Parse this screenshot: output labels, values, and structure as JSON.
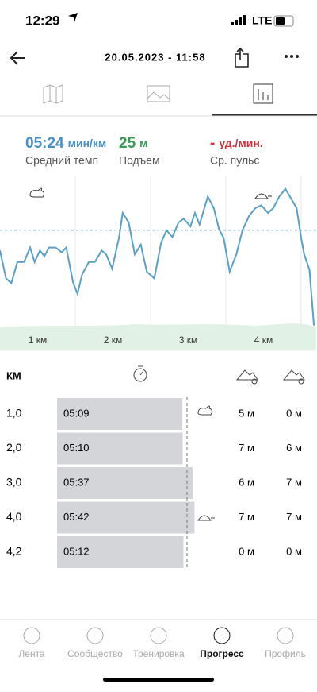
{
  "status_bar": {
    "time": "12:29",
    "network": "LTE"
  },
  "header": {
    "title": "20.05.2023 - 11:58"
  },
  "stats": [
    {
      "value": "05:24",
      "unit": "мин/км",
      "label": "Средний темп"
    },
    {
      "value": "25",
      "unit": "м",
      "label": "Подъем"
    },
    {
      "value": "-",
      "unit": "уд./мин.",
      "label": "Ср. пульс"
    }
  ],
  "pace_chart": {
    "type": "line",
    "color": "#5b9fc4",
    "x": [
      0,
      0.08,
      0.15,
      0.23,
      0.32,
      0.4,
      0.46,
      0.53,
      0.59,
      0.65,
      0.74,
      0.82,
      0.88,
      0.97,
      1.03,
      1.09,
      1.18,
      1.26,
      1.35,
      1.41,
      1.49,
      1.58,
      1.63,
      1.71,
      1.79,
      1.87,
      1.95,
      2.05,
      2.14,
      2.21,
      2.29,
      2.37,
      2.44,
      2.53,
      2.59,
      2.65,
      2.76,
      2.84,
      2.91,
      2.97,
      3.05,
      3.14,
      3.22,
      3.31,
      3.39,
      3.47,
      3.56,
      3.63,
      3.71,
      3.79,
      3.85,
      3.94,
      4.0,
      4.04,
      4.11,
      4.17
    ],
    "values": [
      303,
      274,
      269,
      291,
      291,
      306,
      291,
      303,
      297,
      306,
      306,
      301,
      306,
      270,
      258,
      278,
      291,
      291,
      303,
      299,
      284,
      316,
      342,
      332,
      299,
      309,
      281,
      274,
      311,
      324,
      317,
      332,
      336,
      328,
      342,
      330,
      359,
      347,
      325,
      316,
      281,
      299,
      324,
      339,
      347,
      350,
      342,
      347,
      359,
      367,
      359,
      347,
      316,
      299,
      283,
      225
    ],
    "xlim": [
      0,
      4.2
    ],
    "ylim": [
      200,
      380
    ],
    "xticks": [
      {
        "value": 0.5,
        "label": "1 км"
      },
      {
        "value": 1.5,
        "label": "2 км"
      },
      {
        "value": 2.5,
        "label": "3 км"
      },
      {
        "value": 3.5,
        "label": "4 км"
      }
    ]
  },
  "table": {
    "header": "КМ",
    "rows": [
      [
        "1,0",
        "05:09",
        "5 м",
        "0 м"
      ],
      [
        "2,0",
        "05:10",
        "7 м",
        "6 м"
      ],
      [
        "3,0",
        "05:37",
        "6 м",
        "7 м"
      ],
      [
        "4,0",
        "05:42",
        "7 м",
        "7 м"
      ],
      [
        "4,2",
        "05:12",
        "0 м",
        "0 м"
      ]
    ]
  },
  "tabbar": {
    "items": [
      "Лента",
      "Сообщество",
      "Тренировка",
      "Прогресс",
      "Профиль"
    ],
    "active": 3
  }
}
